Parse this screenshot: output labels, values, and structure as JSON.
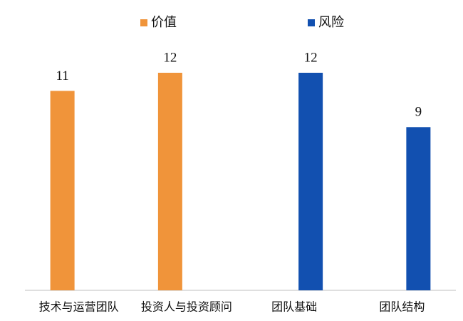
{
  "chart_data": {
    "type": "bar",
    "categories": [
      "技术与运营团队",
      "投资人与投资顾问",
      "团队基础",
      "团队结构"
    ],
    "series": [
      {
        "name": "价值",
        "color": "#f0943a",
        "values": [
          11,
          12,
          null,
          null
        ]
      },
      {
        "name": "风险",
        "color": "#1250b0",
        "values": [
          null,
          null,
          12,
          9
        ]
      }
    ],
    "ylim": [
      0,
      12
    ],
    "legend": "top",
    "data_labels": true
  }
}
